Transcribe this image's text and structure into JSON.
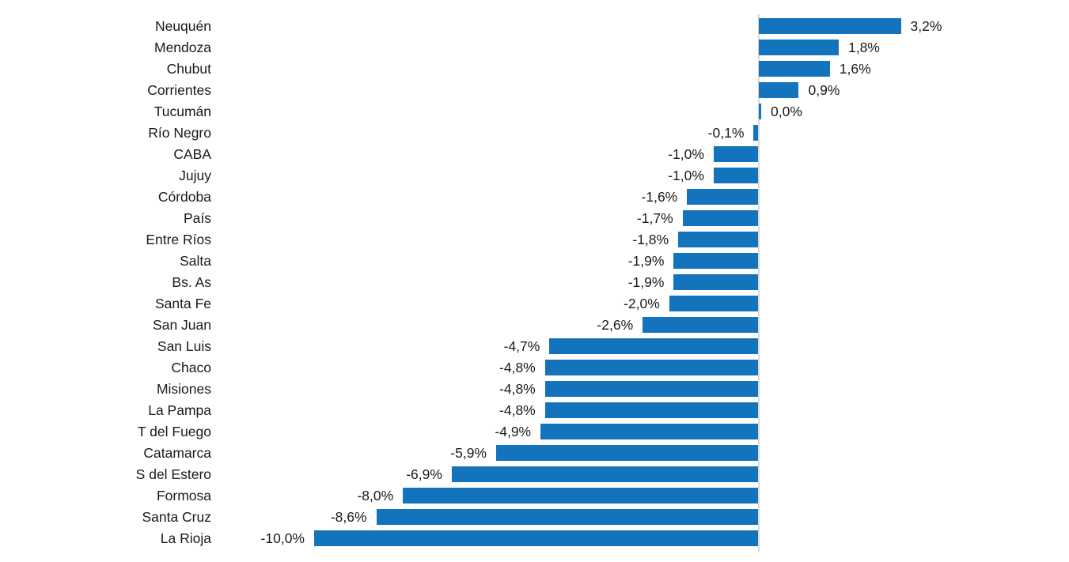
{
  "chart_data": {
    "type": "bar",
    "orientation": "horizontal",
    "title": "",
    "xlabel": "",
    "ylabel": "",
    "unit": "%",
    "decimal_separator": ",",
    "grid": false,
    "legend": false,
    "xlim": [
      -10.5,
      4.0
    ],
    "categories": [
      "Neuquén",
      "Mendoza",
      "Chubut",
      "Corrientes",
      "Tucumán",
      "Río Negro",
      "CABA",
      "Jujuy",
      "Córdoba",
      "País",
      "Entre Ríos",
      "Salta",
      "Bs. As",
      "Santa Fe",
      "San Juan",
      "San Luis",
      "Chaco",
      "Misiones",
      "La Pampa",
      "T del Fuego",
      "Catamarca",
      "S del Estero",
      "Formosa",
      "Santa Cruz",
      "La Rioja"
    ],
    "values": [
      3.2,
      1.8,
      1.6,
      0.9,
      0.0,
      -0.1,
      -1.0,
      -1.0,
      -1.6,
      -1.7,
      -1.8,
      -1.9,
      -1.9,
      -2.0,
      -2.6,
      -4.7,
      -4.8,
      -4.8,
      -4.8,
      -4.9,
      -5.9,
      -6.9,
      -8.0,
      -8.6,
      -10.0
    ],
    "value_labels": [
      "3,2%",
      "1,8%",
      "1,6%",
      "0,9%",
      "0,0%",
      "-0,1%",
      "-1,0%",
      "-1,0%",
      "-1,6%",
      "-1,7%",
      "-1,8%",
      "-1,9%",
      "-1,9%",
      "-2,0%",
      "-2,6%",
      "-4,7%",
      "-4,8%",
      "-4,8%",
      "-4,8%",
      "-4,9%",
      "-5,9%",
      "-6,9%",
      "-8,0%",
      "-8,6%",
      "-10,0%"
    ],
    "colors": {
      "bar": "#1473BD",
      "zero_axis_line": "#d9d9d9",
      "text": "#1a1a1a",
      "background": "#ffffff"
    }
  }
}
